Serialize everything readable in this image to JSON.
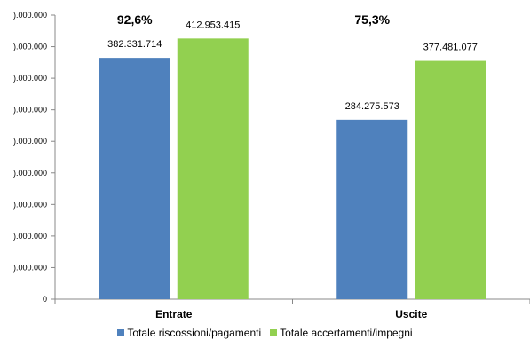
{
  "chart_data": {
    "type": "bar",
    "categories": [
      "Entrate",
      "Uscite"
    ],
    "series": [
      {
        "name": "Totale riscossioni/pagamenti",
        "values": [
          382331714,
          284275573
        ],
        "labels": [
          "382.331.714",
          "284.275.573"
        ],
        "color": "#4f81bd"
      },
      {
        "name": "Totale accertamenti/impegni",
        "values": [
          412953415,
          377481077
        ],
        "labels": [
          "412.953.415",
          "377.481.077"
        ],
        "color": "#92d050"
      }
    ],
    "percentages": [
      "92,6%",
      "75,3%"
    ],
    "ylim": [
      0,
      450000000
    ],
    "yticks": [
      {
        "value": 0,
        "label": "0"
      },
      {
        "value": 50000000,
        "label": ").000.000"
      },
      {
        "value": 100000000,
        "label": ").000.000"
      },
      {
        "value": 150000000,
        "label": ").000.000"
      },
      {
        "value": 200000000,
        "label": ").000.000"
      },
      {
        "value": 250000000,
        "label": ").000.000"
      },
      {
        "value": 300000000,
        "label": ").000.000"
      },
      {
        "value": 350000000,
        "label": ").000.000"
      },
      {
        "value": 400000000,
        "label": ").000.000"
      },
      {
        "value": 450000000,
        "label": ").000.000"
      }
    ],
    "grid": false,
    "legend_position": "bottom"
  }
}
